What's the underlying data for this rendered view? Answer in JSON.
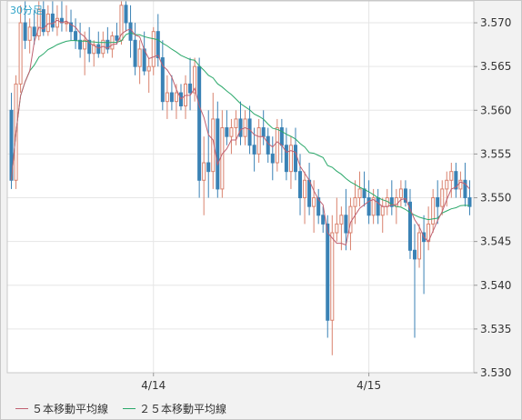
{
  "chart_data": {
    "type": "candlestick",
    "period_label": "30分足",
    "ylim": [
      3.53,
      3.5725
    ],
    "y_ticks": [
      "3.570",
      "3.565",
      "3.560",
      "3.555",
      "3.550",
      "3.545",
      "3.540",
      "3.535",
      "3.530"
    ],
    "x_ticks": [
      {
        "label": "4/14",
        "index": 31
      },
      {
        "label": "4/15",
        "index": 78
      }
    ],
    "grid": true,
    "legend_position": "bottom",
    "colors": {
      "up": "#d9826e",
      "down": "#3a82b5",
      "ma5": "#c06070",
      "ma25": "#2aa86a"
    },
    "series": [
      {
        "name": "５本移動平均線",
        "type": "line"
      },
      {
        "name": "２５本移動平均線",
        "type": "line"
      }
    ],
    "candles": [
      [
        3.56,
        3.562,
        3.551,
        3.552
      ],
      [
        3.552,
        3.564,
        3.551,
        3.563
      ],
      [
        3.563,
        3.572,
        3.562,
        3.57
      ],
      [
        3.57,
        3.574,
        3.567,
        3.568
      ],
      [
        3.568,
        3.5705,
        3.5665,
        3.5695
      ],
      [
        3.5695,
        3.5715,
        3.5675,
        3.5685
      ],
      [
        3.5685,
        3.5725,
        3.568,
        3.5715
      ],
      [
        3.5715,
        3.573,
        3.5685,
        3.569
      ],
      [
        3.569,
        3.572,
        3.5685,
        3.571
      ],
      [
        3.571,
        3.573,
        3.569,
        3.5695
      ],
      [
        3.5695,
        3.572,
        3.5685,
        3.5705
      ],
      [
        3.5705,
        3.573,
        3.569,
        3.57
      ],
      [
        3.57,
        3.572,
        3.569,
        3.57
      ],
      [
        3.57,
        3.5715,
        3.568,
        3.569
      ],
      [
        3.569,
        3.5705,
        3.567,
        3.568
      ],
      [
        3.568,
        3.57,
        3.566,
        3.567
      ],
      [
        3.567,
        3.569,
        3.564,
        3.568
      ],
      [
        3.568,
        3.5695,
        3.5655,
        3.5665
      ],
      [
        3.5665,
        3.568,
        3.565,
        3.5675
      ],
      [
        3.5675,
        3.569,
        3.566,
        3.5665
      ],
      [
        3.5665,
        3.569,
        3.566,
        3.568
      ],
      [
        3.568,
        3.5695,
        3.5665,
        3.567
      ],
      [
        3.567,
        3.569,
        3.566,
        3.5685
      ],
      [
        3.5685,
        3.57,
        3.5675,
        3.568
      ],
      [
        3.568,
        3.5725,
        3.5675,
        3.572
      ],
      [
        3.572,
        3.5725,
        3.569,
        3.57
      ],
      [
        3.57,
        3.572,
        3.566,
        3.568
      ],
      [
        3.568,
        3.57,
        3.564,
        3.565
      ],
      [
        3.565,
        3.568,
        3.563,
        3.567
      ],
      [
        3.567,
        3.569,
        3.564,
        3.5645
      ],
      [
        3.5645,
        3.566,
        3.562,
        3.565
      ],
      [
        3.565,
        3.5695,
        3.564,
        3.569
      ],
      [
        3.569,
        3.571,
        3.565,
        3.566
      ],
      [
        3.566,
        3.568,
        3.56,
        3.561
      ],
      [
        3.561,
        3.564,
        3.559,
        3.562
      ],
      [
        3.562,
        3.564,
        3.56,
        3.561
      ],
      [
        3.561,
        3.563,
        3.559,
        3.562
      ],
      [
        3.562,
        3.563,
        3.56,
        3.5605
      ],
      [
        3.5605,
        3.564,
        3.559,
        3.563
      ],
      [
        3.563,
        3.566,
        3.56,
        3.562
      ],
      [
        3.562,
        3.566,
        3.561,
        3.565
      ],
      [
        3.565,
        3.566,
        3.55,
        3.552
      ],
      [
        3.552,
        3.557,
        3.548,
        3.554
      ],
      [
        3.554,
        3.56,
        3.55,
        3.553
      ],
      [
        3.553,
        3.562,
        3.551,
        3.559
      ],
      [
        3.559,
        3.561,
        3.55,
        3.551
      ],
      [
        3.551,
        3.56,
        3.55,
        3.558
      ],
      [
        3.558,
        3.56,
        3.556,
        3.557
      ],
      [
        3.557,
        3.559,
        3.555,
        3.558
      ],
      [
        3.558,
        3.56,
        3.556,
        3.559
      ],
      [
        3.559,
        3.561,
        3.556,
        3.557
      ],
      [
        3.557,
        3.56,
        3.556,
        3.559
      ],
      [
        3.559,
        3.5605,
        3.555,
        3.556
      ],
      [
        3.556,
        3.558,
        3.553,
        3.555
      ],
      [
        3.555,
        3.559,
        3.554,
        3.558
      ],
      [
        3.558,
        3.56,
        3.556,
        3.557
      ],
      [
        3.557,
        3.558,
        3.554,
        3.555
      ],
      [
        3.555,
        3.557,
        3.552,
        3.554
      ],
      [
        3.554,
        3.559,
        3.553,
        3.558
      ],
      [
        3.558,
        3.559,
        3.554,
        3.556
      ],
      [
        3.556,
        3.558,
        3.552,
        3.553
      ],
      [
        3.553,
        3.557,
        3.551,
        3.556
      ],
      [
        3.556,
        3.558,
        3.552,
        3.553
      ],
      [
        3.553,
        3.555,
        3.548,
        3.55
      ],
      [
        3.55,
        3.553,
        3.547,
        3.552
      ],
      [
        3.552,
        3.554,
        3.548,
        3.549
      ],
      [
        3.549,
        3.552,
        3.546,
        3.55
      ],
      [
        3.55,
        3.551,
        3.547,
        3.548
      ],
      [
        3.548,
        3.549,
        3.546,
        3.547
      ],
      [
        3.547,
        3.548,
        3.534,
        3.536
      ],
      [
        3.536,
        3.548,
        3.532,
        3.546
      ],
      [
        3.546,
        3.55,
        3.545,
        3.547
      ],
      [
        3.547,
        3.549,
        3.544,
        3.548
      ],
      [
        3.548,
        3.551,
        3.544,
        3.546
      ],
      [
        3.546,
        3.55,
        3.544,
        3.549
      ],
      [
        3.549,
        3.552,
        3.547,
        3.55
      ],
      [
        3.55,
        3.553,
        3.549,
        3.551
      ],
      [
        3.551,
        3.553,
        3.549,
        3.55
      ],
      [
        3.55,
        3.552,
        3.547,
        3.548
      ],
      [
        3.548,
        3.551,
        3.547,
        3.55
      ],
      [
        3.55,
        3.551,
        3.547,
        3.548
      ],
      [
        3.548,
        3.55,
        3.546,
        3.549
      ],
      [
        3.549,
        3.551,
        3.548,
        3.55
      ],
      [
        3.55,
        3.552,
        3.548,
        3.549
      ],
      [
        3.549,
        3.551,
        3.547,
        3.55
      ],
      [
        3.55,
        3.552,
        3.549,
        3.551
      ],
      [
        3.551,
        3.552,
        3.549,
        3.5495
      ],
      [
        3.5495,
        3.551,
        3.543,
        3.544
      ],
      [
        3.544,
        3.547,
        3.534,
        3.543
      ],
      [
        3.543,
        3.547,
        3.542,
        3.546
      ],
      [
        3.546,
        3.548,
        3.539,
        3.545
      ],
      [
        3.545,
        3.549,
        3.544,
        3.547
      ],
      [
        3.547,
        3.551,
        3.546,
        3.55
      ],
      [
        3.55,
        3.552,
        3.547,
        3.549
      ],
      [
        3.549,
        3.552,
        3.548,
        3.551
      ],
      [
        3.551,
        3.553,
        3.549,
        3.552
      ],
      [
        3.552,
        3.554,
        3.55,
        3.553
      ],
      [
        3.553,
        3.554,
        3.55,
        3.551
      ],
      [
        3.551,
        3.553,
        3.55,
        3.552
      ],
      [
        3.552,
        3.554,
        3.549,
        3.55
      ],
      [
        3.55,
        3.552,
        3.548,
        3.549
      ]
    ]
  }
}
